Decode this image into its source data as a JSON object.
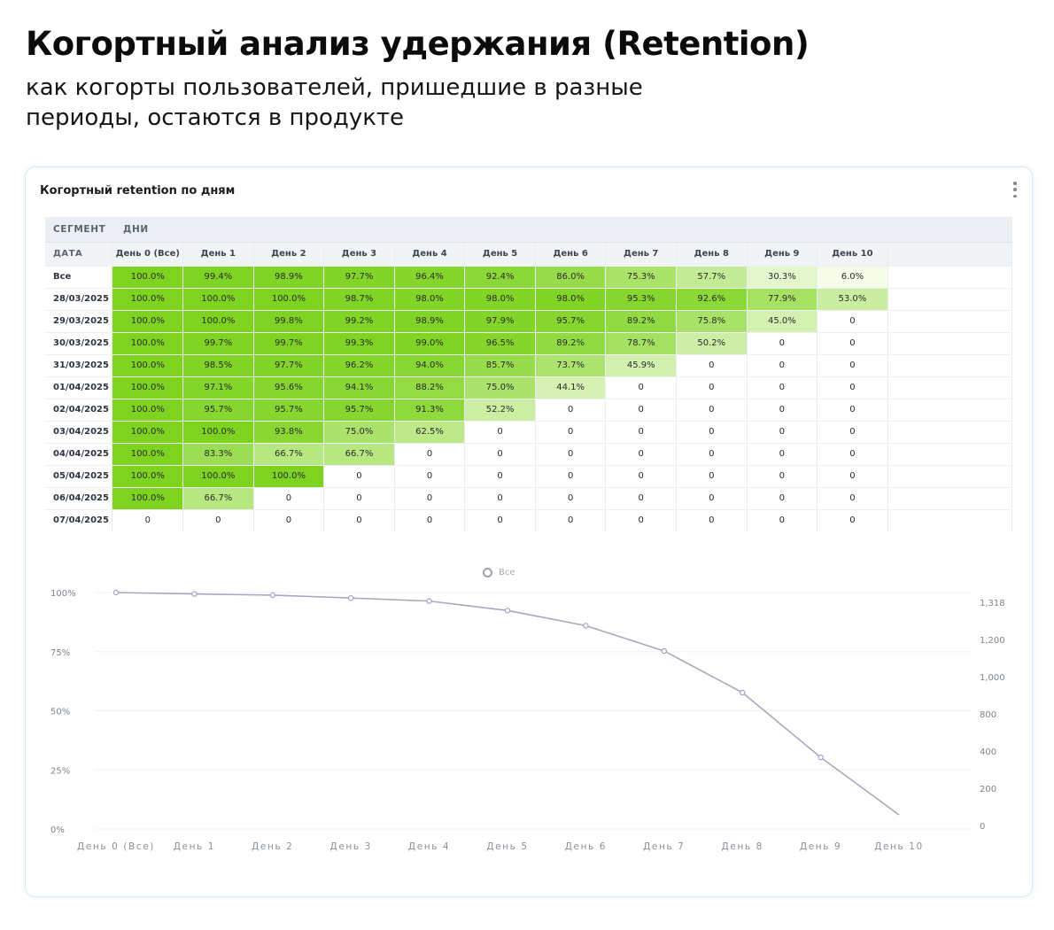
{
  "header": {
    "title": "Когортный анализ удержания (Retention)",
    "subtitle": "как когорты пользователей, пришедшие в разные периоды, остаются в продукте"
  },
  "card": {
    "title": "Когортный retention по дням",
    "segment_label": "СЕГМЕНТ",
    "days_label": "ДНИ",
    "date_header": "ДАТА"
  },
  "colors": {
    "heat_high": "#7ed321",
    "heat_low": "#f6fce9",
    "line": "#a7a9bf",
    "grid": "#eef1f4"
  },
  "table": {
    "columns": [
      "День 0 (Все)",
      "День 1",
      "День 2",
      "День 3",
      "День 4",
      "День 5",
      "День 6",
      "День 7",
      "День 8",
      "День 9",
      "День 10"
    ],
    "rows": [
      {
        "date": "Все",
        "values": [
          "100.0%",
          "99.4%",
          "98.9%",
          "97.7%",
          "96.4%",
          "92.4%",
          "86.0%",
          "75.3%",
          "57.7%",
          "30.3%",
          "6.0%"
        ]
      },
      {
        "date": "28/03/2025",
        "values": [
          "100.0%",
          "100.0%",
          "100.0%",
          "98.7%",
          "98.0%",
          "98.0%",
          "98.0%",
          "95.3%",
          "92.6%",
          "77.9%",
          "53.0%"
        ]
      },
      {
        "date": "29/03/2025",
        "values": [
          "100.0%",
          "100.0%",
          "99.8%",
          "99.2%",
          "98.9%",
          "97.9%",
          "95.7%",
          "89.2%",
          "75.8%",
          "45.0%",
          "0"
        ]
      },
      {
        "date": "30/03/2025",
        "values": [
          "100.0%",
          "99.7%",
          "99.7%",
          "99.3%",
          "99.0%",
          "96.5%",
          "89.2%",
          "78.7%",
          "50.2%",
          "0",
          "0"
        ]
      },
      {
        "date": "31/03/2025",
        "values": [
          "100.0%",
          "98.5%",
          "97.7%",
          "96.2%",
          "94.0%",
          "85.7%",
          "73.7%",
          "45.9%",
          "0",
          "0",
          "0"
        ]
      },
      {
        "date": "01/04/2025",
        "values": [
          "100.0%",
          "97.1%",
          "95.6%",
          "94.1%",
          "88.2%",
          "75.0%",
          "44.1%",
          "0",
          "0",
          "0",
          "0"
        ]
      },
      {
        "date": "02/04/2025",
        "values": [
          "100.0%",
          "95.7%",
          "95.7%",
          "95.7%",
          "91.3%",
          "52.2%",
          "0",
          "0",
          "0",
          "0",
          "0"
        ]
      },
      {
        "date": "03/04/2025",
        "values": [
          "100.0%",
          "100.0%",
          "93.8%",
          "75.0%",
          "62.5%",
          "0",
          "0",
          "0",
          "0",
          "0",
          "0"
        ]
      },
      {
        "date": "04/04/2025",
        "values": [
          "100.0%",
          "83.3%",
          "66.7%",
          "66.7%",
          "0",
          "0",
          "0",
          "0",
          "0",
          "0",
          "0"
        ]
      },
      {
        "date": "05/04/2025",
        "values": [
          "100.0%",
          "100.0%",
          "100.0%",
          "0",
          "0",
          "0",
          "0",
          "0",
          "0",
          "0",
          "0"
        ]
      },
      {
        "date": "06/04/2025",
        "values": [
          "100.0%",
          "66.7%",
          "0",
          "0",
          "0",
          "0",
          "0",
          "0",
          "0",
          "0",
          "0"
        ]
      },
      {
        "date": "07/04/2025",
        "values": [
          "0",
          "0",
          "0",
          "0",
          "0",
          "0",
          "0",
          "0",
          "0",
          "0",
          "0"
        ]
      }
    ]
  },
  "chart_data": {
    "type": "line",
    "categories": [
      "День 0 (Все)",
      "День 1",
      "День 2",
      "День 3",
      "День 4",
      "День 5",
      "День 6",
      "День 7",
      "День 8",
      "День 9",
      "День 10"
    ],
    "series": [
      {
        "name": "Все",
        "values": [
          100.0,
          99.4,
          98.9,
          97.7,
          96.4,
          92.4,
          86.0,
          75.3,
          57.7,
          30.3,
          6.0
        ]
      }
    ],
    "ylim": [
      0,
      100
    ],
    "y_ticks": [
      "0%",
      "25%",
      "50%",
      "75%",
      "100%"
    ],
    "y2_ticks": [
      "0",
      "200",
      "400",
      "800",
      "1,000",
      "1,200",
      "1,318"
    ],
    "grid": true,
    "legend": "top-center"
  }
}
